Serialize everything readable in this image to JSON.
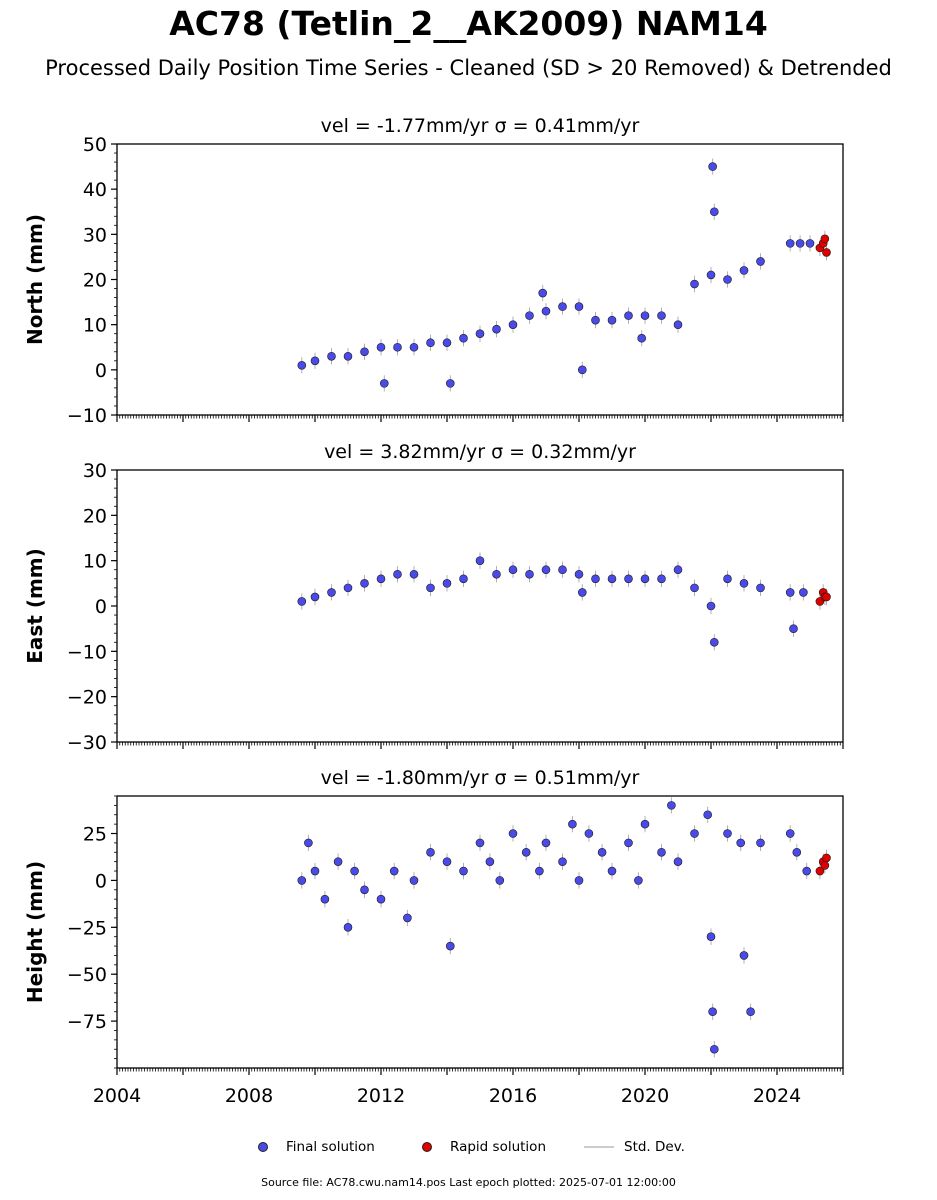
{
  "title": "AC78 (Tetlin_2__AK2009) NAM14",
  "subtitle": "Processed Daily Position Time Series - Cleaned (SD > 20 Removed) & Detrended",
  "legend": {
    "final_label": "Final solution",
    "rapid_label": "Rapid solution",
    "std_label": "Std. Dev."
  },
  "colors": {
    "final": "#4a4ae8",
    "rapid": "#e00000",
    "std": "#b0b0b0"
  },
  "footer": {
    "source_label": "Source file:",
    "source_file": "AC78.cwu.nam14.pos",
    "epoch_label": "Last epoch plotted:",
    "last_epoch": "2025-07-01 12:00:00"
  },
  "chart_data": [
    {
      "type": "scatter",
      "title": "vel = -1.77mm/yr   σ = 0.41mm/yr",
      "ylabel": "North (mm)",
      "xlim": [
        2004,
        2026
      ],
      "ylim": [
        -10,
        50
      ],
      "yticks": [
        -10,
        0,
        10,
        20,
        30,
        40,
        50
      ],
      "grid": false,
      "series": [
        {
          "name": "Final solution",
          "x": [
            2009.6,
            2010.0,
            2010.5,
            2011.0,
            2011.5,
            2012.0,
            2012.1,
            2012.5,
            2013.0,
            2013.5,
            2014.0,
            2014.1,
            2014.5,
            2015.0,
            2015.5,
            2016.0,
            2016.5,
            2016.9,
            2017.0,
            2017.5,
            2018.0,
            2018.1,
            2018.5,
            2019.0,
            2019.5,
            2019.9,
            2020.0,
            2020.5,
            2021.0,
            2021.5,
            2022.0,
            2022.05,
            2022.1,
            2022.5,
            2023.0,
            2023.5,
            2024.4,
            2024.7,
            2025.0
          ],
          "y": [
            1,
            2,
            3,
            3,
            4,
            5,
            -3,
            5,
            5,
            6,
            6,
            -3,
            7,
            8,
            9,
            10,
            12,
            17,
            13,
            14,
            14,
            0,
            11,
            11,
            12,
            7,
            12,
            12,
            10,
            19,
            21,
            45,
            35,
            20,
            22,
            24,
            28,
            28,
            28
          ]
        },
        {
          "name": "Rapid solution",
          "x": [
            2025.3,
            2025.4,
            2025.45,
            2025.5
          ],
          "y": [
            27,
            28,
            29,
            26
          ]
        }
      ]
    },
    {
      "type": "scatter",
      "title": "vel = 3.82mm/yr   σ = 0.32mm/yr",
      "ylabel": "East (mm)",
      "xlim": [
        2004,
        2026
      ],
      "ylim": [
        -30,
        30
      ],
      "yticks": [
        -30,
        -20,
        -10,
        0,
        10,
        20,
        30
      ],
      "grid": false,
      "series": [
        {
          "name": "Final solution",
          "x": [
            2009.6,
            2010.0,
            2010.5,
            2011.0,
            2011.5,
            2012.0,
            2012.5,
            2013.0,
            2013.5,
            2014.0,
            2014.5,
            2015.0,
            2015.5,
            2016.0,
            2016.5,
            2017.0,
            2017.5,
            2018.0,
            2018.1,
            2018.5,
            2019.0,
            2019.5,
            2020.0,
            2020.5,
            2021.0,
            2021.5,
            2022.0,
            2022.1,
            2022.5,
            2023.0,
            2023.5,
            2024.4,
            2024.5,
            2024.8
          ],
          "y": [
            1,
            2,
            3,
            4,
            5,
            6,
            7,
            7,
            4,
            5,
            6,
            10,
            7,
            8,
            7,
            8,
            8,
            7,
            3,
            6,
            6,
            6,
            6,
            6,
            8,
            4,
            0,
            -8,
            6,
            5,
            4,
            3,
            -5,
            3
          ]
        },
        {
          "name": "Rapid solution",
          "x": [
            2025.3,
            2025.4,
            2025.45,
            2025.5
          ],
          "y": [
            1,
            3,
            2,
            2
          ]
        }
      ]
    },
    {
      "type": "scatter",
      "title": "vel = -1.80mm/yr   σ = 0.51mm/yr",
      "ylabel": "Height (mm)",
      "xlabel": "",
      "xlim": [
        2004,
        2026
      ],
      "ylim": [
        -100,
        45
      ],
      "yticks": [
        -75,
        -50,
        -25,
        0,
        25
      ],
      "xticks": [
        2004,
        2008,
        2012,
        2016,
        2020,
        2024
      ],
      "grid": false,
      "series": [
        {
          "name": "Final solution",
          "x": [
            2009.6,
            2009.8,
            2010.0,
            2010.3,
            2010.7,
            2011.0,
            2011.2,
            2011.5,
            2012.0,
            2012.4,
            2012.8,
            2013.0,
            2013.5,
            2014.0,
            2014.1,
            2014.5,
            2015.0,
            2015.3,
            2015.6,
            2016.0,
            2016.4,
            2016.8,
            2017.0,
            2017.5,
            2017.8,
            2018.0,
            2018.3,
            2018.7,
            2019.0,
            2019.5,
            2019.8,
            2020.0,
            2020.5,
            2020.8,
            2021.0,
            2021.5,
            2021.9,
            2022.0,
            2022.05,
            2022.1,
            2022.5,
            2022.9,
            2023.0,
            2023.2,
            2023.5,
            2024.4,
            2024.6,
            2024.9
          ],
          "y": [
            0,
            20,
            5,
            -10,
            10,
            -25,
            5,
            -5,
            -10,
            5,
            -20,
            0,
            15,
            10,
            -35,
            5,
            20,
            10,
            0,
            25,
            15,
            5,
            20,
            10,
            30,
            0,
            25,
            15,
            5,
            20,
            0,
            30,
            15,
            40,
            10,
            25,
            35,
            -30,
            -70,
            -90,
            25,
            20,
            -40,
            -70,
            20,
            25,
            15,
            5
          ]
        },
        {
          "name": "Rapid solution",
          "x": [
            2025.3,
            2025.4,
            2025.45,
            2025.5
          ],
          "y": [
            5,
            10,
            8,
            12
          ]
        }
      ]
    }
  ]
}
